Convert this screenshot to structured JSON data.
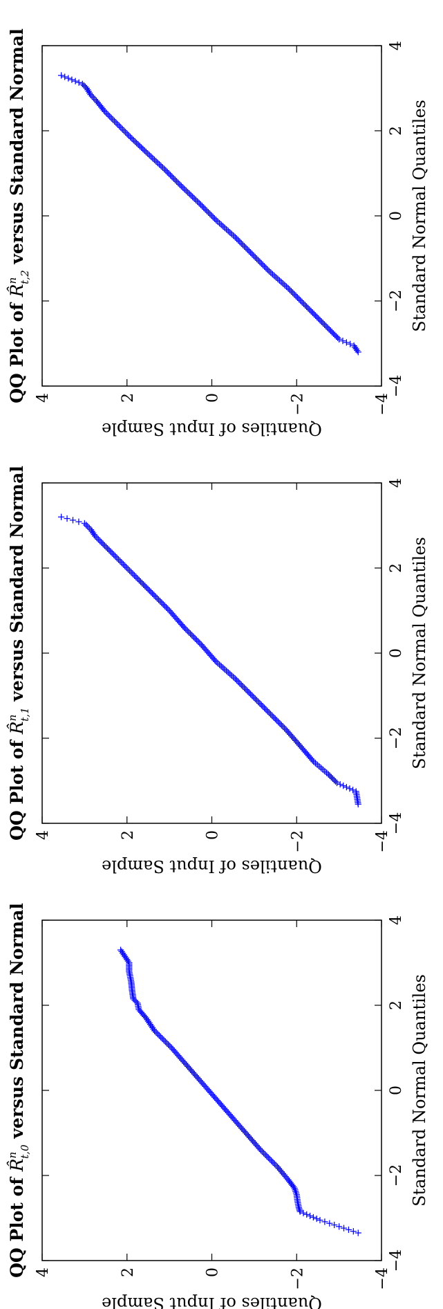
{
  "chart_data": [
    {
      "type": "scatter",
      "title": "QQ Plot of \\widehat{R}^{n}_{t,0} versus Standard Normal",
      "title_text": {
        "prefix": "QQ Plot of ",
        "symbol": "R̂",
        "superscript": "n",
        "subscript": "t,0",
        "suffix": " versus Standard Normal"
      },
      "xlabel": "Standard Normal Quantiles",
      "ylabel": "Quantiles of Input Sample",
      "xlim": [
        -4,
        4
      ],
      "ylim": [
        -4,
        4
      ],
      "x_ticks": [
        "-4",
        "-2",
        "0",
        "2",
        "4"
      ],
      "y_ticks": [
        "-4",
        "-2",
        "0",
        "2",
        "4"
      ],
      "grid": false,
      "marker": "+",
      "color": "#0000ff",
      "series": [
        {
          "kind": "qq_summary",
          "points": [
            [
              -3.35,
              -3.45
            ],
            [
              -3.05,
              -2.55
            ],
            [
              -2.85,
              -2.08
            ],
            [
              -2.75,
              -2.05
            ],
            [
              -2.6,
              -2.02
            ],
            [
              -2.45,
              -2.0
            ],
            [
              -2.3,
              -1.95
            ],
            [
              -2.1,
              -1.8
            ],
            [
              -1.8,
              -1.55
            ],
            [
              -1.4,
              -1.15
            ],
            [
              -1.0,
              -0.8
            ],
            [
              -0.6,
              -0.45
            ],
            [
              -0.2,
              -0.1
            ],
            [
              0.2,
              0.25
            ],
            [
              0.6,
              0.6
            ],
            [
              1.0,
              0.95
            ],
            [
              1.4,
              1.35
            ],
            [
              1.7,
              1.55
            ],
            [
              1.9,
              1.72
            ],
            [
              2.05,
              1.75
            ],
            [
              2.15,
              1.85
            ],
            [
              2.35,
              1.88
            ],
            [
              2.55,
              1.9
            ],
            [
              2.8,
              1.95
            ],
            [
              3.0,
              1.95
            ],
            [
              3.3,
              2.15
            ]
          ]
        }
      ]
    },
    {
      "type": "scatter",
      "title": "QQ Plot of \\widehat{R}^{n}_{t,1} versus Standard Normal",
      "title_text": {
        "prefix": "QQ Plot of ",
        "symbol": "R̂",
        "superscript": "n",
        "subscript": "t,1",
        "suffix": " versus Standard Normal"
      },
      "xlabel": "Standard Normal Quantiles",
      "ylabel": "Quantiles of Input Sample",
      "xlim": [
        -4,
        4
      ],
      "ylim": [
        -4,
        4
      ],
      "x_ticks": [
        "-4",
        "-2",
        "0",
        "2",
        "4"
      ],
      "y_ticks": [
        "-4",
        "-2",
        "0",
        "2",
        "4"
      ],
      "grid": false,
      "marker": "+",
      "color": "#0000ff",
      "series": [
        {
          "kind": "qq_summary",
          "points": [
            [
              -3.55,
              -3.45
            ],
            [
              -3.25,
              -3.4
            ],
            [
              -3.05,
              -2.95
            ],
            [
              -2.85,
              -2.75
            ],
            [
              -2.55,
              -2.4
            ],
            [
              -2.2,
              -2.1
            ],
            [
              -1.8,
              -1.75
            ],
            [
              -1.4,
              -1.35
            ],
            [
              -1.0,
              -0.95
            ],
            [
              -0.6,
              -0.55
            ],
            [
              -0.2,
              -0.1
            ],
            [
              0.2,
              0.25
            ],
            [
              0.6,
              0.65
            ],
            [
              1.0,
              1.0
            ],
            [
              1.4,
              1.4
            ],
            [
              1.75,
              1.75
            ],
            [
              2.05,
              2.05
            ],
            [
              2.35,
              2.35
            ],
            [
              2.6,
              2.6
            ],
            [
              2.75,
              2.75
            ],
            [
              2.9,
              2.85
            ],
            [
              3.05,
              3.0
            ],
            [
              3.2,
              3.55
            ]
          ]
        }
      ]
    },
    {
      "type": "scatter",
      "title": "QQ Plot of \\widehat{R}^{n}_{t,2} versus Standard Normal",
      "title_text": {
        "prefix": "QQ Plot of ",
        "symbol": "R̂",
        "superscript": "n",
        "subscript": "t,2",
        "suffix": " versus Standard Normal"
      },
      "xlabel": "Standard Normal Quantiles",
      "ylabel": "Quantiles of Input Sample",
      "xlim": [
        -4,
        4
      ],
      "ylim": [
        -4,
        4
      ],
      "x_ticks": [
        "-4",
        "-2",
        "0",
        "2",
        "4"
      ],
      "y_ticks": [
        "-4",
        "-2",
        "0",
        "2",
        "4"
      ],
      "grid": false,
      "marker": "+",
      "color": "#0000ff",
      "series": [
        {
          "kind": "qq_summary",
          "points": [
            [
              -3.2,
              -3.45
            ],
            [
              -3.05,
              -3.35
            ],
            [
              -2.9,
              -3.0
            ],
            [
              -2.7,
              -2.8
            ],
            [
              -2.45,
              -2.55
            ],
            [
              -2.1,
              -2.2
            ],
            [
              -1.7,
              -1.8
            ],
            [
              -1.3,
              -1.35
            ],
            [
              -0.9,
              -0.95
            ],
            [
              -0.5,
              -0.55
            ],
            [
              -0.1,
              -0.1
            ],
            [
              0.3,
              0.3
            ],
            [
              0.7,
              0.72
            ],
            [
              1.1,
              1.12
            ],
            [
              1.5,
              1.55
            ],
            [
              1.85,
              1.92
            ],
            [
              2.15,
              2.22
            ],
            [
              2.45,
              2.52
            ],
            [
              2.7,
              2.72
            ],
            [
              2.85,
              2.86
            ],
            [
              3.0,
              2.95
            ],
            [
              3.1,
              3.05
            ],
            [
              3.3,
              3.55
            ]
          ]
        }
      ]
    }
  ]
}
